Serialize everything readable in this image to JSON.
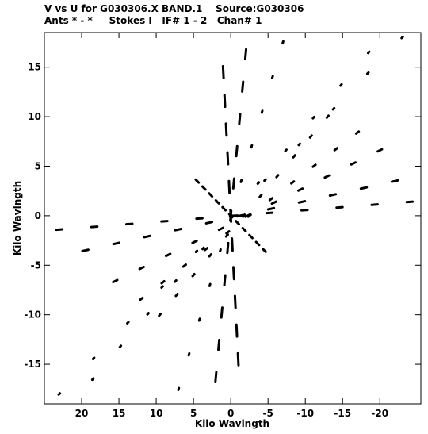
{
  "chart_data": {
    "type": "scatter",
    "title": "V vs U for G030306.X BAND.1    Source:G030306",
    "subtitle": "Ants * - *     Stokes I   IF# 1 - 2   Chan# 1",
    "xlabel": "Kilo Wavlngth",
    "ylabel": "Kilo Wavlngth",
    "xlim": [
      25,
      -25.5
    ],
    "ylim": [
      -19,
      18.5
    ],
    "xticks": [
      20,
      15,
      10,
      5,
      0,
      -5,
      -10,
      -15,
      -20
    ],
    "yticks": [
      15,
      10,
      5,
      0,
      -5,
      -10,
      -15
    ],
    "xtick_labels": [
      "20",
      "15",
      "10",
      "5",
      "0",
      "-5",
      "-10",
      "-15",
      "-20"
    ],
    "ytick_labels": [
      "15",
      "10",
      "5",
      "0",
      "-5",
      "-10",
      "-15"
    ],
    "grid": false,
    "legend": "none",
    "marker_color": "#000000",
    "families": [
      {
        "name": "",
        "p0": [
          23,
          -1.4
        ],
        "p1": [
          -24,
          1.4
        ],
        "len_start": 0.8,
        "len_end": 0.8
      },
      {
        "name": "",
        "p0": [
          19.5,
          -3.5
        ],
        "p1": [
          -22,
          3.5
        ],
        "len_start": 0.8,
        "len_end": 0.8
      },
      {
        "name": "",
        "p0": [
          15.5,
          -6.6
        ],
        "p1": [
          -20,
          6.6
        ],
        "len_start": 0.6,
        "len_end": 0.6
      },
      {
        "name": "",
        "p0": [
          12,
          -8.4
        ],
        "p1": [
          -17,
          8.4
        ],
        "len_start": 0.4,
        "len_end": 0.4
      },
      {
        "name": "",
        "p0": [
          9.5,
          -10
        ],
        "p1": [
          -13,
          10
        ],
        "len_start": 0.3,
        "len_end": 0.3
      },
      {
        "name": "",
        "p0": [
          23,
          -18
        ],
        "p1": [
          -23,
          18
        ],
        "len_start": 0.2,
        "len_end": 0.2
      },
      {
        "name": "",
        "p0": [
          18.5,
          -16.5
        ],
        "p1": [
          -18.5,
          16.5
        ],
        "len_start": 0.2,
        "len_end": 0.2
      },
      {
        "name": "",
        "p0": [
          7,
          -17.5
        ],
        "p1": [
          -7,
          17.5
        ],
        "len_start": 0.2,
        "len_end": 0.2
      },
      {
        "name": "",
        "p0": [
          2,
          -16.3
        ],
        "p1": [
          -2,
          16.3
        ],
        "len_start": 1.0,
        "len_end": 1.0
      },
      {
        "name": "",
        "p0": [
          -1,
          -14.5
        ],
        "p1": [
          1,
          14.5
        ],
        "len_start": 1.2,
        "len_end": 1.2
      },
      {
        "name": "",
        "p0": [
          4.5,
          3.5
        ],
        "p1": [
          -4.5,
          -3.5
        ],
        "len_start": 0.5,
        "len_end": 0.5
      }
    ]
  }
}
